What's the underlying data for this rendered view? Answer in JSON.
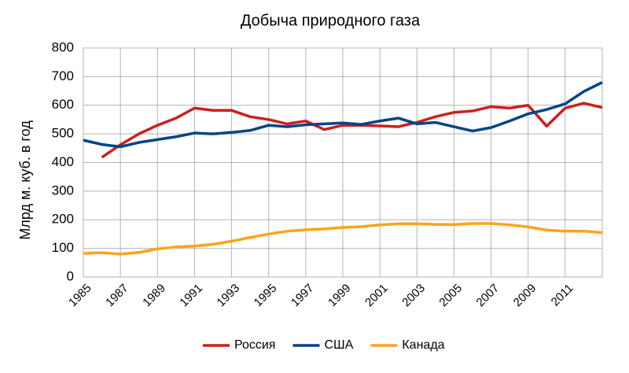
{
  "chart_data": {
    "type": "line",
    "title": "Добыча природного газа",
    "y_label": "Млрд м. куб. в год",
    "x": [
      1985,
      1986,
      1987,
      1988,
      1989,
      1990,
      1991,
      1992,
      1993,
      1994,
      1995,
      1996,
      1997,
      1998,
      1999,
      2000,
      2001,
      2002,
      2003,
      2004,
      2005,
      2006,
      2007,
      2008,
      2009,
      2010,
      2011,
      2012,
      2013
    ],
    "series": [
      {
        "name": "Россия",
        "color": "#c9211e",
        "values": [
          null,
          418,
          462,
          500,
          530,
          555,
          590,
          582,
          582,
          560,
          550,
          535,
          545,
          515,
          530,
          530,
          528,
          525,
          540,
          560,
          575,
          580,
          595,
          590,
          600,
          527,
          590,
          607,
          592
        ]
      },
      {
        "name": "США",
        "color": "#004586",
        "values": [
          478,
          463,
          455,
          470,
          480,
          490,
          503,
          500,
          505,
          512,
          530,
          525,
          532,
          535,
          538,
          533,
          545,
          555,
          535,
          540,
          525,
          510,
          522,
          545,
          570,
          585,
          605,
          648,
          680
        ]
      },
      {
        "name": "Канада",
        "color": "#ffa31a",
        "values": [
          82,
          85,
          80,
          86,
          98,
          105,
          108,
          114,
          125,
          138,
          150,
          160,
          165,
          168,
          173,
          176,
          182,
          186,
          186,
          184,
          183,
          187,
          187,
          182,
          175,
          164,
          160,
          160,
          155
        ]
      }
    ],
    "xlim": [
      1985,
      2013
    ],
    "xticks": [
      1985,
      1987,
      1989,
      1991,
      1993,
      1995,
      1997,
      1999,
      2001,
      2003,
      2005,
      2007,
      2009,
      2011
    ],
    "ylim": [
      0,
      800
    ],
    "yticks": [
      0,
      100,
      200,
      300,
      400,
      500,
      600,
      700,
      800
    ],
    "grid": true,
    "legend": "bottom"
  }
}
